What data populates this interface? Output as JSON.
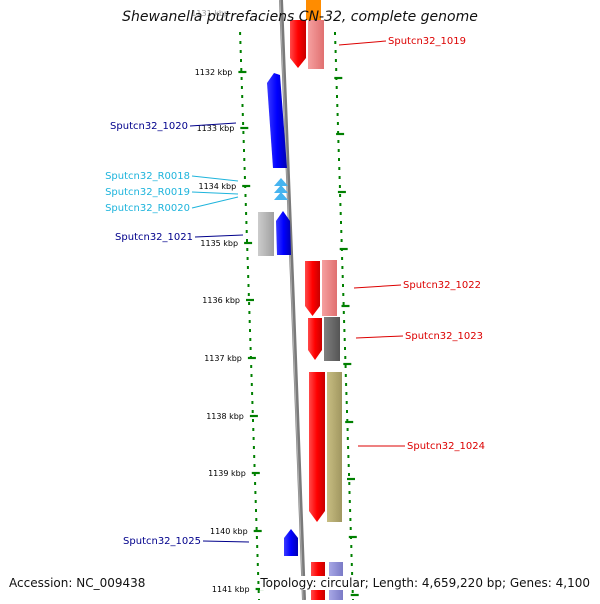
{
  "title": "Shewanella putrefaciens CN-32, complete genome",
  "accession_text": "Accession: NC_009438",
  "topology_text": "Topology: circular; Length: 4,659,220 bp; Genes: 4,100",
  "top_partial_label": "1131 kbp",
  "ticks": [
    {
      "label": "1132 kbp"
    },
    {
      "label": "1133 kbp"
    },
    {
      "label": "1134 kbp"
    },
    {
      "label": "1135 kbp"
    },
    {
      "label": "1136 kbp"
    },
    {
      "label": "1137 kbp"
    },
    {
      "label": "1138 kbp"
    },
    {
      "label": "1139 kbp"
    },
    {
      "label": "1140 kbp"
    },
    {
      "label": "1141 kbp"
    }
  ],
  "left_labels": [
    {
      "text": "Sputcn32_1020",
      "color": "#00008b"
    },
    {
      "text": "Sputcn32_R0018",
      "color": "#1eb4dc"
    },
    {
      "text": "Sputcn32_R0019",
      "color": "#1eb4dc"
    },
    {
      "text": "Sputcn32_R0020",
      "color": "#1eb4dc"
    },
    {
      "text": "Sputcn32_1021",
      "color": "#00008b"
    },
    {
      "text": "Sputcn32_1025",
      "color": "#00008b"
    }
  ],
  "right_labels": [
    {
      "text": "Sputcn32_1019",
      "color": "#dc0000"
    },
    {
      "text": "Sputcn32_1022",
      "color": "#dc0000"
    },
    {
      "text": "Sputcn32_1023",
      "color": "#dc0000"
    },
    {
      "text": "Sputcn32_1024",
      "color": "#dc0000"
    }
  ],
  "colors": {
    "forward_cds": "#ff0000",
    "reverse_cds": "#0000ff",
    "rna": "#46b4f0",
    "backbone": "#888888",
    "tick": "#008000",
    "cog_pink": "#f08080",
    "cog_orange": "#ff8c00",
    "cog_gray": "#666666",
    "cog_olive": "#b4aa6e",
    "cog_lightgray": "#b4b4b4",
    "cog_purple": "#8c8cd2"
  }
}
